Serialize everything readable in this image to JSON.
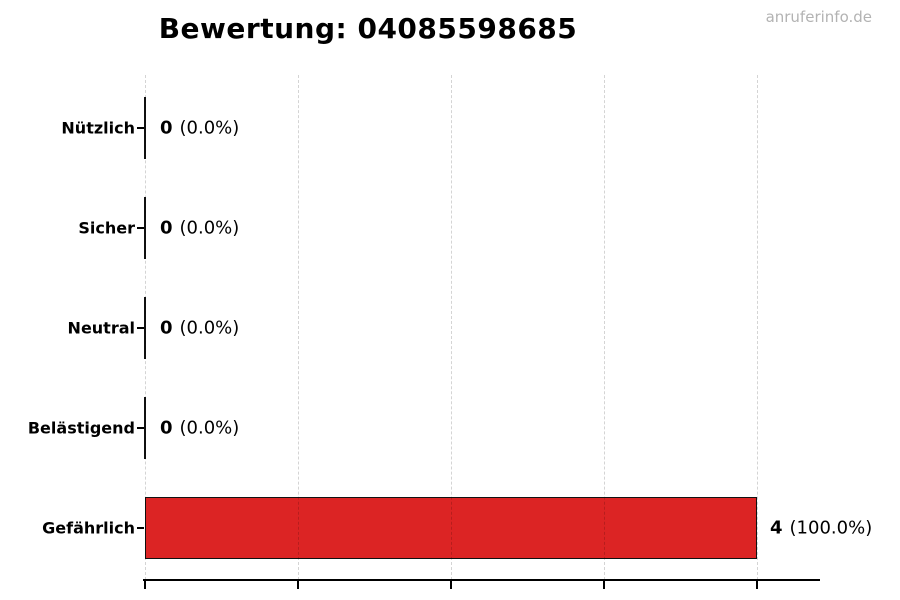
{
  "title": "Bewertung: 04085598685",
  "watermark": "anruferinfo.de",
  "colors": {
    "bar_fill": "#dc2424",
    "bar_edge": "#111111",
    "zero_bar": "#111111",
    "grid": "#cccccc",
    "axis": "#000000",
    "text": "#000000",
    "watermark": "#b3b3b3",
    "background": "#ffffff"
  },
  "chart_data": {
    "type": "bar",
    "orientation": "horizontal",
    "title": "Bewertung: 04085598685",
    "categories": [
      "Nützlich",
      "Sicher",
      "Neutral",
      "Belästigend",
      "Gefährlich"
    ],
    "values": [
      0,
      0,
      0,
      0,
      4
    ],
    "percentages": [
      0.0,
      0.0,
      0.0,
      0.0,
      100.0
    ],
    "total_votes": 4,
    "xlim": [
      0,
      4.41
    ],
    "xticks": [
      0,
      1,
      2,
      3,
      4
    ],
    "xtick_labels_visible": false,
    "grid": "vertical dashed, drawn over bars",
    "legend": "none",
    "bar_color": "#dc2424",
    "bar_edge_color": "#111111"
  },
  "rows": [
    {
      "label": "Nützlich",
      "count": "0",
      "pct": "(0.0%)"
    },
    {
      "label": "Sicher",
      "count": "0",
      "pct": "(0.0%)"
    },
    {
      "label": "Neutral",
      "count": "0",
      "pct": "(0.0%)"
    },
    {
      "label": "Belästigend",
      "count": "0",
      "pct": "(0.0%)"
    },
    {
      "label": "Gefährlich",
      "count": "4",
      "pct": "(100.0%)"
    }
  ]
}
